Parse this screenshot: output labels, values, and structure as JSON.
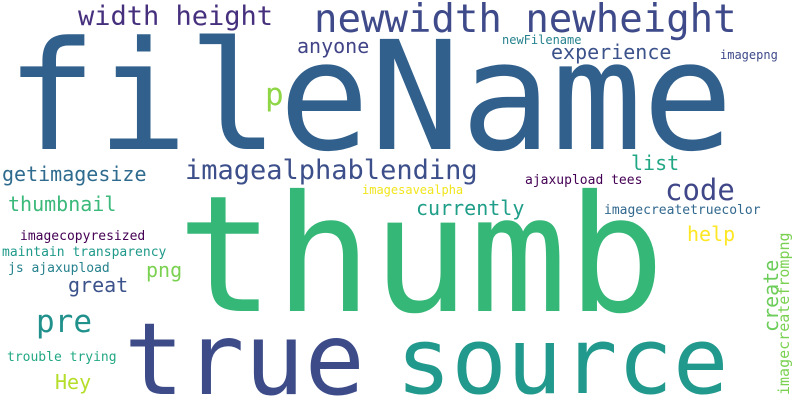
{
  "words": [
    {
      "id": "fileName",
      "text": "fileName",
      "color": "#31608d"
    },
    {
      "id": "thumb",
      "text": "thumb",
      "color": "#35b778"
    },
    {
      "id": "true",
      "text": "true",
      "color": "#3d4c89"
    },
    {
      "id": "source",
      "text": "source",
      "color": "#21998c"
    },
    {
      "id": "newwidth-newheight",
      "text": "newwidth newheight",
      "color": "#3e4a89"
    },
    {
      "id": "width-height",
      "text": "width height",
      "color": "#46307e"
    },
    {
      "id": "imagealphablending",
      "text": "imagealphablending",
      "color": "#3c4f8a"
    },
    {
      "id": "code",
      "text": "code",
      "color": "#3f4788"
    },
    {
      "id": "getimagesize",
      "text": "getimagesize",
      "color": "#2f6b8e"
    },
    {
      "id": "thumbnail",
      "text": "thumbnail",
      "color": "#3ab97a"
    },
    {
      "id": "pre",
      "text": "pre",
      "color": "#21918c"
    },
    {
      "id": "experience",
      "text": "experience",
      "color": "#3b528b"
    },
    {
      "id": "anyone",
      "text": "anyone",
      "color": "#414487"
    },
    {
      "id": "p",
      "text": "p",
      "color": "#8ed645"
    },
    {
      "id": "list",
      "text": "list",
      "color": "#22a785"
    },
    {
      "id": "currently",
      "text": "currently",
      "color": "#1f9e89"
    },
    {
      "id": "help",
      "text": "help",
      "color": "#fde725"
    },
    {
      "id": "great",
      "text": "great",
      "color": "#3b528b"
    },
    {
      "id": "png",
      "text": "png",
      "color": "#7ad151"
    },
    {
      "id": "Hey",
      "text": "Hey",
      "color": "#b5de2b"
    },
    {
      "id": "create",
      "text": "create",
      "color": "#6ccd5a"
    },
    {
      "id": "imagecreatefrompng",
      "text": "imagecreatefrompng",
      "color": "#7ad151"
    },
    {
      "id": "ajaxupload-tees",
      "text": "ajaxupload tees",
      "color": "#440154"
    },
    {
      "id": "imagesavealpha",
      "text": "imagesavealpha",
      "color": "#f1e51d"
    },
    {
      "id": "imagecreatetruecolor",
      "text": "imagecreatetruecolor",
      "color": "#31688e"
    },
    {
      "id": "newFilename",
      "text": "newFilename",
      "color": "#26828e"
    },
    {
      "id": "imagepng",
      "text": "imagepng",
      "color": "#3e4989"
    },
    {
      "id": "imagecopyresized",
      "text": "imagecopyresized",
      "color": "#440154"
    },
    {
      "id": "maintain-transparency",
      "text": "maintain transparency",
      "color": "#1f9a8a"
    },
    {
      "id": "js-ajaxupload",
      "text": "js ajaxupload",
      "color": "#26828e"
    },
    {
      "id": "trouble-trying",
      "text": "trouble trying",
      "color": "#22a884"
    }
  ]
}
